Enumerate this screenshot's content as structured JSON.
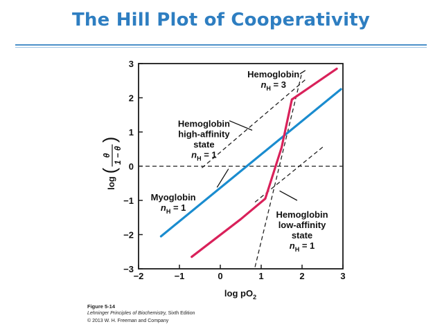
{
  "slide": {
    "title": "The Hill Plot of Cooperativity"
  },
  "caption": {
    "figure": "Figure 5-14",
    "book": "Lehninger Principles of Biochemistry,",
    "edition": " Sixth Edition",
    "copyright": "© 2013 W. H. Freeman and Company"
  },
  "colors": {
    "title": "#2e7ec1",
    "myoglobin": "#1a8ccf",
    "hemoglobin": "#d9215a",
    "asymptote": "#222222"
  },
  "chart_data": {
    "type": "line",
    "title": "",
    "xlabel": "log pO",
    "xlabel_sub": "2",
    "ylabel": "log (θ / (1 − θ))",
    "ylabel_parts": {
      "log": "log",
      "numerator": "θ",
      "denominator": "1 − θ"
    },
    "xlim": [
      -2,
      3
    ],
    "ylim": [
      -3,
      3
    ],
    "x_ticks": [
      -2,
      -1,
      0,
      1,
      2,
      3
    ],
    "y_ticks": [
      -3,
      -2,
      -1,
      0,
      1,
      2,
      3
    ],
    "x_tick_labels": [
      "−2",
      "−1",
      "0",
      "1",
      "2",
      "3"
    ],
    "y_tick_labels": [
      "−3",
      "−2",
      "−1",
      "0",
      "1",
      "2",
      "3"
    ],
    "grid": false,
    "series": [
      {
        "key": "myoglobin",
        "style": "solid",
        "color": "#1a8ccf",
        "x": [
          -1.45,
          2.95
        ],
        "y": [
          -2.05,
          2.25
        ]
      },
      {
        "key": "hemoglobin",
        "style": "solid",
        "color": "#d9215a",
        "x": [
          -0.7,
          0.5,
          1.1,
          1.5,
          1.75,
          2.85
        ],
        "y": [
          -2.65,
          -1.55,
          -0.95,
          0.55,
          1.95,
          2.85
        ]
      },
      {
        "key": "high_affinity_asymptote",
        "style": "dashed",
        "color": "#222222",
        "x": [
          -0.45,
          2.1
        ],
        "y": [
          -0.05,
          2.55
        ]
      },
      {
        "key": "low_affinity_asymptote",
        "style": "dashed",
        "color": "#222222",
        "x": [
          0.85,
          2.55
        ],
        "y": [
          -1.05,
          0.6
        ]
      },
      {
        "key": "nh3_asymptote",
        "style": "dashed",
        "color": "#222222",
        "x": [
          0.85,
          2.0
        ],
        "y": [
          -2.95,
          2.75
        ]
      },
      {
        "key": "zero_line",
        "style": "dashed",
        "color": "#222222",
        "x": [
          -2,
          3
        ],
        "y": [
          0,
          0
        ]
      }
    ],
    "annotations": [
      {
        "key": "hemoglobin_nh3",
        "lines": [
          "Hemoglobin",
          "n_H = 3"
        ],
        "line_lengths": [
          10,
          7
        ],
        "x": 1.3,
        "y": 2.6,
        "leader": [
          1.95,
          2.7,
          2.08,
          2.8
        ]
      },
      {
        "key": "high_affinity",
        "lines": [
          "Hemoglobin",
          "high-affinity",
          "state",
          "n_H = 1"
        ],
        "line_lengths": [
          10,
          13,
          5,
          7
        ],
        "x": -0.4,
        "y": 1.15,
        "leader": [
          0.22,
          1.33,
          0.78,
          1.05
        ]
      },
      {
        "key": "myoglobin",
        "lines": [
          "Myoglobin",
          "n_H = 1"
        ],
        "line_lengths": [
          9,
          7
        ],
        "x": -1.15,
        "y": -1.0,
        "leader": [
          -0.08,
          -0.62,
          0.2,
          -0.08
        ]
      },
      {
        "key": "low_affinity",
        "lines": [
          "Hemoglobin",
          "low-affinity",
          "state",
          "n_H = 1"
        ],
        "line_lengths": [
          10,
          12,
          5,
          7
        ],
        "x": 2.0,
        "y": -1.5,
        "leader": [
          1.88,
          -1.0,
          1.45,
          -0.72
        ]
      }
    ]
  }
}
